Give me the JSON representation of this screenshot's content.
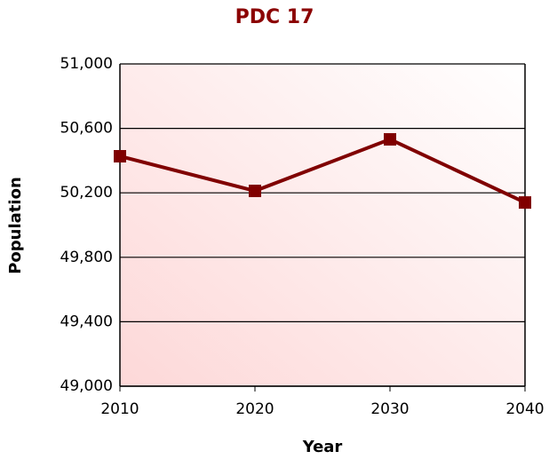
{
  "chart_data": {
    "type": "line",
    "title": "PDC 17",
    "xlabel": "Year",
    "ylabel": "Population",
    "x": [
      2010,
      2020,
      2030,
      2040
    ],
    "series": [
      {
        "name": "Population",
        "color": "#800000",
        "values": [
          50427,
          50212,
          50532,
          50140
        ]
      }
    ],
    "xlim": [
      2010,
      2040
    ],
    "xticks": [
      2010,
      2020,
      2030,
      2040
    ],
    "ylim": [
      49000,
      51000
    ],
    "yticks": [
      {
        "value": 49000,
        "label": "49,000"
      },
      {
        "value": 49400,
        "label": "49,400"
      },
      {
        "value": 49800,
        "label": "49,800"
      },
      {
        "value": 50200,
        "label": "50,200"
      },
      {
        "value": 50600,
        "label": "50,600"
      },
      {
        "value": 51000,
        "label": "51,000"
      }
    ],
    "grid": true
  }
}
